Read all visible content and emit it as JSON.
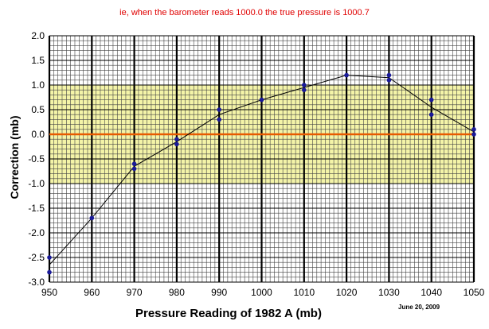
{
  "chart_data": {
    "type": "line",
    "title": "",
    "annotation": "ie, when the barometer reads 1000.0 the true pressure is 1000.7",
    "xlabel": "Pressure Reading of 1982 A  (mb)",
    "ylabel": "Correction (mb)",
    "date_note": "June 20, 2009",
    "xlim": [
      950,
      1050
    ],
    "ylim": [
      -3.0,
      2.0
    ],
    "x_ticks": [
      "950",
      "960",
      "970",
      "980",
      "990",
      "1000",
      "1010",
      "1020",
      "1030",
      "1040",
      "1050"
    ],
    "y_ticks": [
      "2.0",
      "1.5",
      "1.0",
      "0.5",
      "0.0",
      "-0.5",
      "-1.0",
      "-1.5",
      "-2.0",
      "-2.5",
      "-3.0"
    ],
    "shaded_band": {
      "from": -1.0,
      "to": 1.0,
      "color": "#f4f4a8"
    },
    "zero_line_color": "#e85a00",
    "line_color": "#000000",
    "marker_color": "#1a1a99",
    "grid": true,
    "line": {
      "x": [
        950,
        960,
        970,
        980,
        990,
        1000,
        1010,
        1020,
        1030,
        1040,
        1050
      ],
      "y": [
        -2.65,
        -1.7,
        -0.65,
        -0.15,
        0.4,
        0.7,
        0.95,
        1.2,
        1.15,
        0.55,
        0.05
      ]
    },
    "points": {
      "x": [
        950,
        950,
        960,
        970,
        970,
        980,
        980,
        990,
        990,
        1000,
        1010,
        1010,
        1020,
        1030,
        1030,
        1040,
        1040,
        1050,
        1050
      ],
      "y": [
        -2.5,
        -2.8,
        -1.7,
        -0.6,
        -0.7,
        -0.1,
        -0.2,
        0.5,
        0.3,
        0.7,
        1.0,
        0.9,
        1.2,
        1.2,
        1.1,
        0.7,
        0.4,
        0.1,
        0.0
      ]
    }
  }
}
